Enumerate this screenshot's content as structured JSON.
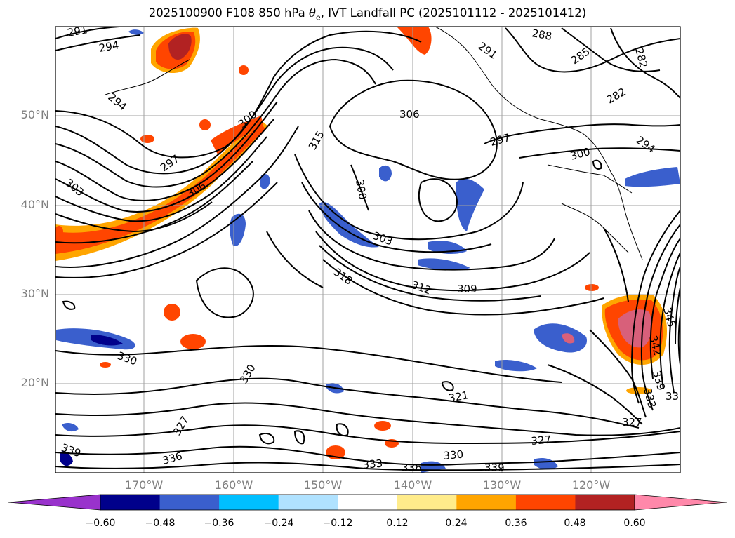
{
  "title": {
    "prefix": "2025100900 F108 850 hPa ",
    "var_symbol": "θ",
    "var_sub": "e",
    "suffix": ", IVT Landfall PC (2025101112 - 2025101412)"
  },
  "axes": {
    "lat_labels": [
      "50°N",
      "40°N",
      "30°N",
      "20°N"
    ],
    "lon_labels": [
      "170°W",
      "160°W",
      "150°W",
      "140°W",
      "130°W",
      "120°W"
    ]
  },
  "contour_labels": [
    {
      "text": "291"
    },
    {
      "text": "294"
    },
    {
      "text": "294"
    },
    {
      "text": "297"
    },
    {
      "text": "303"
    },
    {
      "text": "306"
    },
    {
      "text": "300"
    },
    {
      "text": "315"
    },
    {
      "text": "306"
    },
    {
      "text": "300"
    },
    {
      "text": "303"
    },
    {
      "text": "318"
    },
    {
      "text": "312"
    },
    {
      "text": "309"
    },
    {
      "text": "288"
    },
    {
      "text": "285"
    },
    {
      "text": "282"
    },
    {
      "text": "282"
    },
    {
      "text": "291"
    },
    {
      "text": "297"
    },
    {
      "text": "300"
    },
    {
      "text": "294"
    },
    {
      "text": "330"
    },
    {
      "text": "330"
    },
    {
      "text": "327"
    },
    {
      "text": "339"
    },
    {
      "text": "336"
    },
    {
      "text": "333"
    },
    {
      "text": "336"
    },
    {
      "text": "330"
    },
    {
      "text": "339"
    },
    {
      "text": "321"
    },
    {
      "text": "327"
    },
    {
      "text": "327"
    },
    {
      "text": "339"
    },
    {
      "text": "333"
    },
    {
      "text": "33"
    },
    {
      "text": "345"
    },
    {
      "text": "342"
    }
  ],
  "colorbar": {
    "ticks": [
      "−0.60",
      "−0.48",
      "−0.36",
      "−0.24",
      "−0.12",
      "0.12",
      "0.24",
      "0.36",
      "0.48",
      "0.60"
    ],
    "colors": [
      "#9932cc",
      "#00008b",
      "#3a5fcd",
      "#00bfff",
      "#b0e2ff",
      "#ffffff",
      "#ffec8b",
      "#ffa500",
      "#ff4500",
      "#b22222",
      "#ff88aa"
    ]
  }
}
